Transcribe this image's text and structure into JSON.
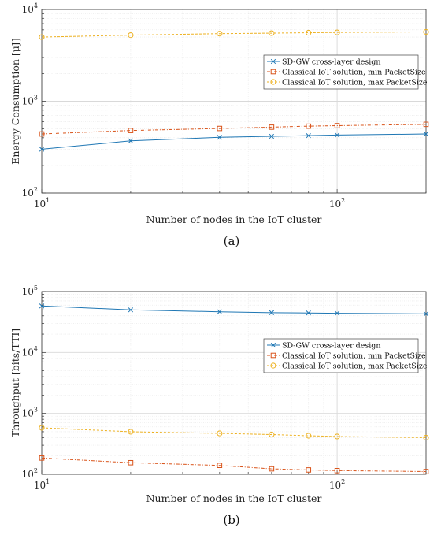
{
  "colors": {
    "sdgw": "#1f77b4",
    "min": "#d95319",
    "max": "#edb120",
    "grid": "#e6e6e6",
    "axis": "#333333"
  },
  "chart_data": [
    {
      "type": "line",
      "caption": "(a)",
      "xlabel": "Number of nodes in the IoT cluster",
      "ylabel": "Energy Consumption [μJ]",
      "xscale": "log",
      "yscale": "log",
      "xlim": [
        10,
        200
      ],
      "ylim": [
        100,
        10000
      ],
      "grid": true,
      "legend_position": "right",
      "x": [
        10,
        20,
        40,
        60,
        80,
        100,
        200
      ],
      "series": [
        {
          "name": "SD-GW cross-layer design",
          "marker": "x",
          "style": "solid",
          "color": "#1f77b4",
          "values": [
            300,
            370,
            405,
            415,
            422,
            428,
            440
          ]
        },
        {
          "name": "Classical IoT solution, min PacketSize",
          "marker": "square",
          "style": "dashdot",
          "color": "#d95319",
          "values": [
            440,
            480,
            505,
            522,
            535,
            542,
            560
          ]
        },
        {
          "name": "Classical IoT solution, max PacketSize",
          "marker": "circle",
          "style": "dashed",
          "color": "#edb120",
          "values": [
            5000,
            5250,
            5450,
            5520,
            5580,
            5620,
            5700
          ]
        }
      ]
    },
    {
      "type": "line",
      "caption": "(b)",
      "xlabel": "Number of nodes in the IoT cluster",
      "ylabel": "Throughput [bits/TTI]",
      "xscale": "log",
      "yscale": "log",
      "xlim": [
        10,
        200
      ],
      "ylim": [
        100,
        100000
      ],
      "grid": true,
      "legend_position": "right",
      "x": [
        10,
        20,
        40,
        60,
        80,
        100,
        200
      ],
      "series": [
        {
          "name": "SD-GW cross-layer design",
          "marker": "x",
          "style": "solid",
          "color": "#1f77b4",
          "values": [
            58000,
            50000,
            46500,
            45000,
            44500,
            44000,
            43000
          ]
        },
        {
          "name": "Classical IoT solution, min PacketSize",
          "marker": "square",
          "style": "dashdot",
          "color": "#d95319",
          "values": [
            185,
            155,
            140,
            123,
            118,
            115,
            111
          ]
        },
        {
          "name": "Classical IoT solution, max PacketSize",
          "marker": "circle",
          "style": "dashed",
          "color": "#edb120",
          "values": [
            580,
            500,
            470,
            450,
            430,
            418,
            400
          ]
        }
      ]
    }
  ]
}
